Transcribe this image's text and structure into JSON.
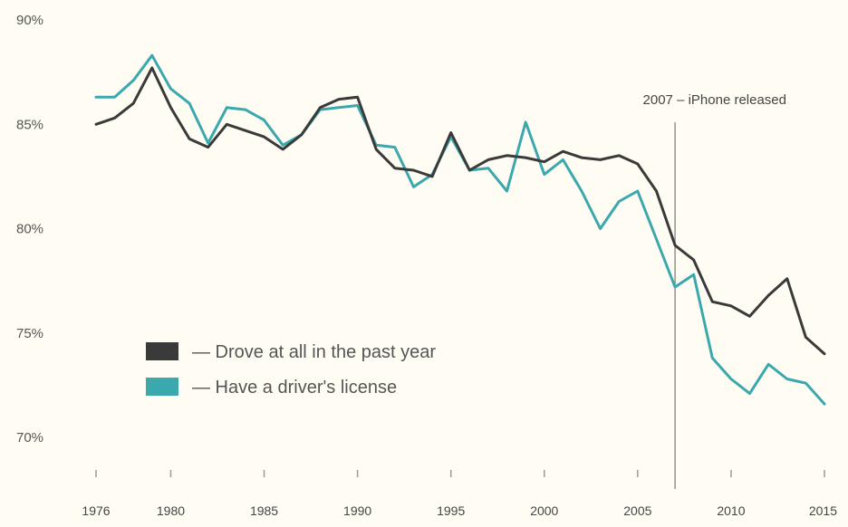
{
  "chart_data": {
    "type": "line",
    "title": "",
    "xlabel": "",
    "ylabel": "",
    "ylim": [
      70,
      90
    ],
    "xlim": [
      1976,
      2015
    ],
    "y_ticks": [
      "90%",
      "85%",
      "80%",
      "75%",
      "70%"
    ],
    "x_ticks": [
      "1976",
      "1980",
      "1985",
      "1990",
      "1995",
      "2000",
      "2005",
      "2010",
      "2015"
    ],
    "legend_position": "bottom-left",
    "grid": false,
    "annotation": {
      "x": 2007,
      "label": "2007 – iPhone released"
    },
    "x": [
      1976,
      1977,
      1978,
      1979,
      1980,
      1981,
      1982,
      1983,
      1984,
      1985,
      1986,
      1987,
      1988,
      1989,
      1990,
      1991,
      1992,
      1993,
      1994,
      1995,
      1996,
      1997,
      1998,
      1999,
      2000,
      2001,
      2002,
      2003,
      2004,
      2005,
      2006,
      2007,
      2008,
      2009,
      2010,
      2011,
      2012,
      2013,
      2014,
      2015
    ],
    "series": [
      {
        "name": "— Drove at all in the past year",
        "color": "#3a3a3a",
        "values": [
          85.0,
          85.3,
          86.0,
          87.7,
          85.8,
          84.3,
          83.9,
          85.0,
          84.7,
          84.4,
          83.8,
          84.5,
          85.8,
          86.2,
          86.3,
          83.8,
          82.9,
          82.8,
          82.5,
          84.6,
          82.8,
          83.3,
          83.5,
          83.4,
          83.2,
          83.7,
          83.4,
          83.3,
          83.5,
          83.1,
          81.8,
          79.2,
          78.5,
          76.5,
          76.3,
          75.8,
          76.8,
          77.6,
          74.8,
          74.0
        ]
      },
      {
        "name": "— Have a driver's license",
        "color": "#3aa8ad",
        "values": [
          86.3,
          86.3,
          87.1,
          88.3,
          86.7,
          86.0,
          84.1,
          85.8,
          85.7,
          85.2,
          84.0,
          84.5,
          85.7,
          85.8,
          85.9,
          84.0,
          83.9,
          82.0,
          82.6,
          84.4,
          82.8,
          82.9,
          81.8,
          85.1,
          82.6,
          83.3,
          81.8,
          80.0,
          81.3,
          81.8,
          79.5,
          77.2,
          77.8,
          73.8,
          72.8,
          72.1,
          73.5,
          72.8,
          72.6,
          71.6
        ]
      }
    ]
  }
}
